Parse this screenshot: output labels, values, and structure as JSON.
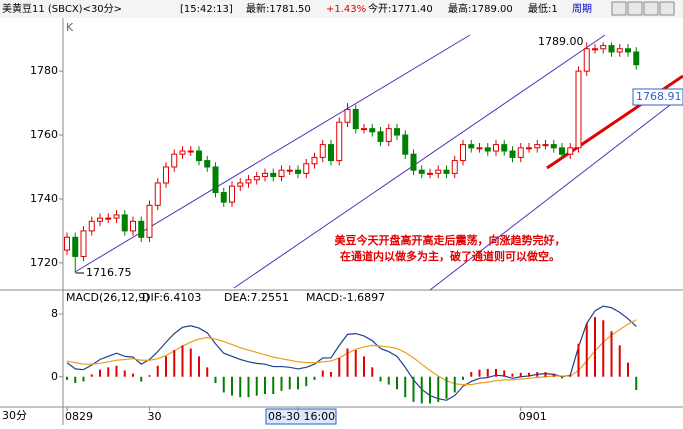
{
  "header": {
    "symbol": "美黄豆11 (SBCX)<30分>",
    "time": "[15:42:13]",
    "latest": "最新:1781.50",
    "change": "+1.43%",
    "open": "今开:1771.40",
    "high": "最高:1789.00",
    "low": "最低:1",
    "period": "周期"
  },
  "chart_data": [
    {
      "type": "candlestick",
      "label": "K",
      "open": [
        1724,
        1728,
        1722,
        1730,
        1733,
        1734,
        1734,
        1735,
        1730,
        1733,
        1728,
        1738,
        1745,
        1750,
        1754,
        1755,
        1755,
        1752,
        1750,
        1742,
        1739,
        1744,
        1745,
        1746,
        1747,
        1748,
        1747,
        1749,
        1749,
        1748,
        1751,
        1753,
        1757,
        1752,
        1764,
        1768,
        1762,
        1762,
        1761,
        1758,
        1762,
        1760,
        1754,
        1749,
        1748,
        1748,
        1749,
        1748,
        1752,
        1757,
        1756,
        1756,
        1755,
        1757,
        1755,
        1753,
        1756,
        1756,
        1757,
        1757,
        1756,
        1754,
        1756,
        1780,
        1787,
        1787,
        1788,
        1786,
        1787,
        1786
      ],
      "high": [
        1729.5,
        1729.5,
        1731.5,
        1734.5,
        1735.5,
        1735.5,
        1736.5,
        1736.5,
        1734.5,
        1734.5,
        1739.5,
        1746.5,
        1751.5,
        1755.5,
        1756.5,
        1756.5,
        1756.5,
        1753.5,
        1751.5,
        1743.5,
        1745.5,
        1746.5,
        1747.5,
        1748.5,
        1749.5,
        1749.5,
        1750.5,
        1750.5,
        1750.5,
        1752.5,
        1754.5,
        1758.5,
        1758.5,
        1765.5,
        1770,
        1769.5,
        1763.5,
        1763.5,
        1762.5,
        1763.5,
        1763.5,
        1761.5,
        1755.5,
        1750.5,
        1749.5,
        1750.5,
        1750.5,
        1753.5,
        1758.5,
        1758.5,
        1757.5,
        1757.5,
        1758.5,
        1758.5,
        1756.5,
        1757.5,
        1757.5,
        1758.5,
        1758.5,
        1758.5,
        1757.5,
        1757.5,
        1781.5,
        1789,
        1788.5,
        1789,
        1789,
        1788.5,
        1788.5,
        1787.5
      ],
      "low": [
        1722.5,
        1716.75,
        1720.5,
        1728.5,
        1731.5,
        1732.5,
        1732.5,
        1728.5,
        1728.5,
        1726.5,
        1726.5,
        1736.5,
        1743.5,
        1748.5,
        1752.5,
        1753.5,
        1750.5,
        1748.5,
        1740.5,
        1737.5,
        1737.5,
        1742.5,
        1743.5,
        1744.5,
        1745.5,
        1745.5,
        1745.5,
        1747.5,
        1746.5,
        1746.5,
        1749.5,
        1751.5,
        1750.5,
        1750.5,
        1762.5,
        1760.5,
        1760.5,
        1759.5,
        1756.5,
        1756.5,
        1758.5,
        1752.5,
        1747.5,
        1746.5,
        1746.5,
        1746.5,
        1746.5,
        1746.5,
        1750.5,
        1754.5,
        1754.5,
        1753.5,
        1753.5,
        1753.5,
        1751.5,
        1751.5,
        1754.5,
        1754.5,
        1755.5,
        1754.5,
        1752.5,
        1752.5,
        1754.5,
        1778.5,
        1785.5,
        1785.5,
        1784.5,
        1784.5,
        1784.5,
        1780.5
      ],
      "close": [
        1728,
        1722,
        1730,
        1733,
        1734,
        1734,
        1735,
        1730,
        1733,
        1728,
        1738,
        1745,
        1750,
        1754,
        1755,
        1755,
        1752,
        1750,
        1742,
        1739,
        1744,
        1745,
        1746,
        1747,
        1748,
        1747,
        1749,
        1749,
        1748,
        1751,
        1753,
        1757,
        1752,
        1764,
        1768,
        1762,
        1762,
        1761,
        1758,
        1762,
        1760,
        1754,
        1749,
        1748,
        1748,
        1749,
        1748,
        1752,
        1757,
        1756,
        1756,
        1755,
        1757,
        1755,
        1753,
        1756,
        1756,
        1757,
        1757,
        1756,
        1754,
        1756,
        1780,
        1787,
        1787,
        1788,
        1786,
        1787,
        1786,
        1782
      ],
      "up_color": "#e00000",
      "down_color": "#008000",
      "ylim": [
        1711.5,
        1796
      ],
      "yticks": [
        1720,
        1740,
        1760,
        1780
      ],
      "annotations": [
        "1789.00",
        "1716.75",
        "1768.91"
      ],
      "note": [
        "美豆今天开盘高开高走后震荡，向涨趋势完好，",
        "在通道内以做多为主，破了通道则可以做空。"
      ],
      "note_color": "#e00000"
    },
    {
      "type": "macd",
      "title": "MACD(26,12,9)",
      "x_label": "30分",
      "cursor": 28,
      "categories": [
        "0829",
        null,
        null,
        null,
        null,
        null,
        null,
        null,
        null,
        null,
        "30",
        null,
        null,
        null,
        null,
        null,
        null,
        null,
        null,
        null,
        null,
        null,
        null,
        null,
        null,
        null,
        null,
        null,
        "08-30 16:00",
        null,
        null,
        null,
        null,
        null,
        null,
        null,
        null,
        null,
        null,
        null,
        null,
        null,
        null,
        null,
        null,
        null,
        null,
        null,
        null,
        null,
        null,
        null,
        null,
        null,
        null,
        "0901",
        null,
        null,
        null,
        null,
        null,
        null,
        null,
        null,
        null,
        null,
        null,
        null,
        null,
        null
      ],
      "series": [
        {
          "name": "DIF:6.4103",
          "color": "#1f3f8f",
          "values": [
            1.8,
            1.0,
            0.9,
            1.5,
            2.2,
            2.6,
            3.0,
            2.6,
            2.5,
            1.6,
            2.2,
            3.2,
            4.4,
            5.5,
            6.3,
            6.5,
            6.2,
            5.6,
            4.2,
            3.0,
            2.6,
            2.2,
            1.9,
            1.7,
            1.6,
            1.3,
            1.3,
            1.2,
            1.0,
            1.2,
            1.6,
            2.4,
            2.4,
            4.0,
            5.4,
            5.5,
            5.2,
            4.6,
            3.6,
            3.2,
            2.6,
            1.2,
            -0.4,
            -1.6,
            -2.4,
            -2.8,
            -3.0,
            -2.4,
            -1.2,
            -0.6,
            -0.2,
            -0.1,
            0.2,
            0.1,
            -0.2,
            0.0,
            0.1,
            0.3,
            0.4,
            0.3,
            0.0,
            0.2,
            3.8,
            6.8,
            8.4,
            9.0,
            8.8,
            8.2,
            7.4,
            6.4103
          ]
        },
        {
          "name": "DEA:7.2551",
          "color": "#e8a020",
          "values": [
            2.0,
            1.8,
            1.6,
            1.6,
            1.7,
            1.9,
            2.1,
            2.2,
            2.3,
            2.1,
            2.1,
            2.3,
            2.7,
            3.3,
            3.9,
            4.4,
            4.8,
            5.0,
            4.8,
            4.5,
            4.1,
            3.7,
            3.4,
            3.1,
            2.8,
            2.5,
            2.3,
            2.1,
            1.9,
            1.8,
            1.8,
            1.9,
            2.0,
            2.4,
            3.0,
            3.5,
            3.8,
            4.0,
            3.9,
            3.8,
            3.6,
            3.1,
            2.4,
            1.6,
            0.8,
            0.1,
            -0.5,
            -0.9,
            -1.0,
            -1.0,
            -0.8,
            -0.7,
            -0.5,
            -0.4,
            -0.4,
            -0.3,
            -0.2,
            -0.1,
            0.0,
            0.1,
            0.1,
            0.1,
            0.8,
            2.0,
            3.3,
            4.4,
            5.3,
            6.0,
            6.7,
            7.2551
          ]
        },
        {
          "name": "MACD:-1.6897",
          "type": "bar",
          "up_color": "#e00000",
          "down_color": "#008000",
          "values": [
            -0.4,
            -0.8,
            -0.6,
            0.3,
            0.9,
            1.2,
            1.4,
            0.8,
            0.4,
            -0.6,
            0.2,
            1.4,
            2.6,
            3.4,
            4.0,
            3.6,
            2.6,
            1.2,
            -0.8,
            -2.0,
            -2.4,
            -2.6,
            -2.6,
            -2.4,
            -2.2,
            -2.2,
            -1.8,
            -1.6,
            -1.6,
            -1.2,
            -0.4,
            0.8,
            0.6,
            2.4,
            3.6,
            3.4,
            2.6,
            1.2,
            -0.6,
            -1.0,
            -1.6,
            -2.6,
            -3.2,
            -3.4,
            -3.4,
            -3.2,
            -2.8,
            -2.0,
            -0.4,
            0.6,
            0.9,
            1.0,
            1.0,
            0.8,
            0.4,
            0.5,
            0.5,
            0.6,
            0.6,
            0.4,
            -0.2,
            0.2,
            4.2,
            6.8,
            7.6,
            7.2,
            5.8,
            4.0,
            1.8,
            -1.6897
          ]
        }
      ],
      "ylim": [
        -3.6,
        10.8
      ],
      "yticks": [
        0,
        8
      ]
    }
  ]
}
